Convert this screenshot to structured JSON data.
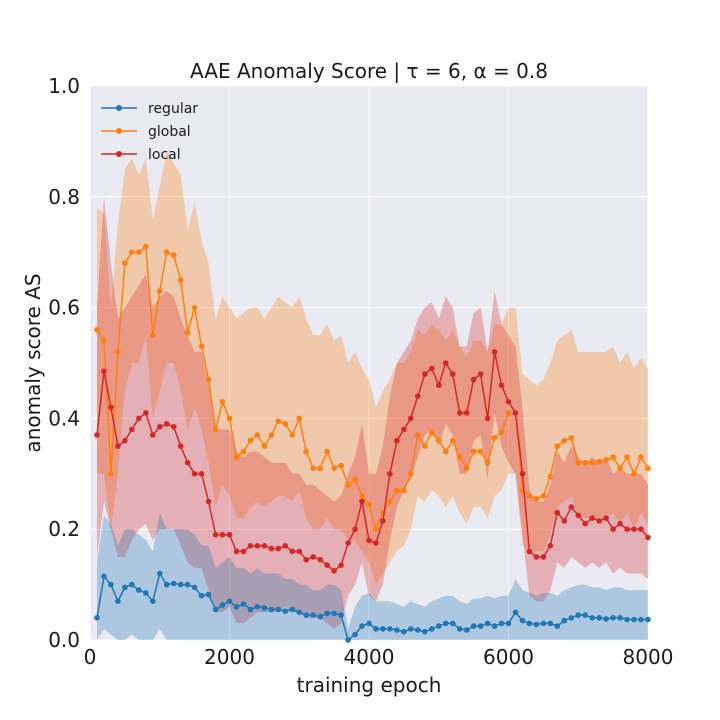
{
  "chart_data": {
    "type": "line",
    "title": "AAE Anomaly Score | τ = 6, α = 0.8",
    "xlabel": "training epoch",
    "ylabel": "anomaly score AS",
    "xlim": [
      0,
      8000
    ],
    "ylim": [
      0,
      1.0
    ],
    "xticks": [
      "0",
      "2000",
      "4000",
      "6000",
      "8000"
    ],
    "yticks": [
      "0.0",
      "0.2",
      "0.4",
      "0.6",
      "0.8",
      "1.0"
    ],
    "grid": true,
    "legend_position": "top-left",
    "x": [
      100,
      200,
      300,
      400,
      500,
      600,
      700,
      800,
      900,
      1000,
      1100,
      1200,
      1300,
      1400,
      1500,
      1600,
      1700,
      1800,
      1900,
      2000,
      2100,
      2200,
      2300,
      2400,
      2500,
      2600,
      2700,
      2800,
      2900,
      3000,
      3100,
      3200,
      3300,
      3400,
      3500,
      3600,
      3700,
      3800,
      3900,
      4000,
      4100,
      4200,
      4300,
      4400,
      4500,
      4600,
      4700,
      4800,
      4900,
      5000,
      5100,
      5200,
      5300,
      5400,
      5500,
      5600,
      5700,
      5800,
      5900,
      6000,
      6100,
      6200,
      6300,
      6400,
      6500,
      6600,
      6700,
      6800,
      6900,
      7000,
      7100,
      7200,
      7300,
      7400,
      7500,
      7600,
      7700,
      7800,
      7900,
      8000
    ],
    "series": [
      {
        "name": "regular",
        "color": "#1f77b4",
        "values": [
          0.04,
          0.115,
          0.1,
          0.07,
          0.095,
          0.1,
          0.09,
          0.085,
          0.07,
          0.12,
          0.1,
          0.102,
          0.1,
          0.1,
          0.095,
          0.08,
          0.082,
          0.055,
          0.063,
          0.07,
          0.06,
          0.065,
          0.055,
          0.06,
          0.058,
          0.055,
          0.055,
          0.052,
          0.055,
          0.05,
          0.045,
          0.045,
          0.042,
          0.048,
          0.048,
          0.045,
          0.0,
          0.01,
          0.025,
          0.03,
          0.02,
          0.02,
          0.02,
          0.018,
          0.015,
          0.02,
          0.018,
          0.015,
          0.02,
          0.025,
          0.03,
          0.03,
          0.02,
          0.018,
          0.025,
          0.025,
          0.03,
          0.025,
          0.03,
          0.03,
          0.05,
          0.035,
          0.03,
          0.028,
          0.03,
          0.03,
          0.025,
          0.035,
          0.04,
          0.045,
          0.045,
          0.04,
          0.04,
          0.038,
          0.04,
          0.04,
          0.037,
          0.037,
          0.037,
          0.037
        ],
        "lower": [
          0.0,
          0.02,
          0.01,
          0.0,
          0.0,
          0.01,
          0.0,
          0.0,
          0.0,
          0.02,
          0.0,
          0.0,
          0.0,
          0.0,
          0.0,
          0.0,
          0.0,
          0.0,
          0.0,
          0.0,
          0.0,
          0.0,
          0.0,
          0.0,
          0.0,
          0.0,
          0.0,
          0.0,
          0.0,
          0.0,
          0.0,
          0.0,
          0.0,
          0.0,
          0.0,
          0.0,
          0.0,
          0.0,
          0.0,
          0.0,
          0.0,
          0.0,
          0.0,
          0.0,
          0.0,
          0.0,
          0.0,
          0.0,
          0.0,
          0.0,
          0.0,
          0.0,
          0.0,
          0.0,
          0.0,
          0.0,
          0.0,
          0.0,
          0.0,
          0.0,
          0.0,
          0.0,
          0.0,
          0.0,
          0.0,
          0.0,
          0.0,
          0.0,
          0.0,
          0.0,
          0.0,
          0.0,
          0.0,
          0.0,
          0.0,
          0.0,
          0.0,
          0.0,
          0.0,
          0.0
        ],
        "upper": [
          0.14,
          0.225,
          0.21,
          0.17,
          0.2,
          0.2,
          0.19,
          0.18,
          0.16,
          0.23,
          0.2,
          0.2,
          0.2,
          0.2,
          0.19,
          0.17,
          0.17,
          0.13,
          0.14,
          0.15,
          0.13,
          0.13,
          0.12,
          0.13,
          0.12,
          0.12,
          0.12,
          0.11,
          0.11,
          0.1,
          0.1,
          0.09,
          0.09,
          0.1,
          0.1,
          0.09,
          0.02,
          0.06,
          0.08,
          0.085,
          0.07,
          0.07,
          0.07,
          0.065,
          0.06,
          0.07,
          0.065,
          0.06,
          0.07,
          0.075,
          0.08,
          0.08,
          0.07,
          0.065,
          0.075,
          0.075,
          0.08,
          0.075,
          0.08,
          0.08,
          0.11,
          0.09,
          0.085,
          0.08,
          0.085,
          0.085,
          0.08,
          0.09,
          0.095,
          0.1,
          0.1,
          0.095,
          0.095,
          0.09,
          0.095,
          0.095,
          0.09,
          0.09,
          0.09,
          0.09
        ]
      },
      {
        "name": "global",
        "color": "#ff7f0e",
        "values": [
          0.56,
          0.54,
          0.3,
          0.52,
          0.68,
          0.7,
          0.7,
          0.71,
          0.55,
          0.63,
          0.7,
          0.695,
          0.65,
          0.555,
          0.6,
          0.53,
          0.47,
          0.38,
          0.43,
          0.4,
          0.33,
          0.34,
          0.36,
          0.37,
          0.35,
          0.37,
          0.395,
          0.39,
          0.37,
          0.4,
          0.34,
          0.31,
          0.31,
          0.34,
          0.31,
          0.315,
          0.28,
          0.29,
          0.26,
          0.245,
          0.2,
          0.23,
          0.25,
          0.27,
          0.27,
          0.3,
          0.37,
          0.35,
          0.375,
          0.36,
          0.34,
          0.36,
          0.33,
          0.31,
          0.34,
          0.34,
          0.32,
          0.365,
          0.375,
          0.41,
          0.41,
          0.27,
          0.26,
          0.255,
          0.26,
          0.295,
          0.35,
          0.36,
          0.365,
          0.32,
          0.32,
          0.32,
          0.322,
          0.325,
          0.33,
          0.31,
          0.33,
          0.3,
          0.33,
          0.31
        ],
        "lower": [
          0.3,
          0.3,
          0.2,
          0.3,
          0.45,
          0.5,
          0.5,
          0.55,
          0.4,
          0.45,
          0.5,
          0.5,
          0.45,
          0.38,
          0.42,
          0.38,
          0.32,
          0.24,
          0.28,
          0.26,
          0.22,
          0.22,
          0.24,
          0.25,
          0.24,
          0.25,
          0.26,
          0.26,
          0.25,
          0.27,
          0.22,
          0.2,
          0.2,
          0.22,
          0.2,
          0.2,
          0.18,
          0.18,
          0.16,
          0.14,
          0.1,
          0.12,
          0.14,
          0.16,
          0.17,
          0.2,
          0.26,
          0.25,
          0.27,
          0.26,
          0.24,
          0.26,
          0.23,
          0.21,
          0.24,
          0.24,
          0.22,
          0.26,
          0.27,
          0.3,
          0.3,
          0.17,
          0.16,
          0.16,
          0.16,
          0.19,
          0.24,
          0.25,
          0.26,
          0.22,
          0.22,
          0.22,
          0.22,
          0.22,
          0.23,
          0.21,
          0.23,
          0.2,
          0.23,
          0.21
        ],
        "upper": [
          0.78,
          0.77,
          0.6,
          0.75,
          0.85,
          0.87,
          0.84,
          0.87,
          0.76,
          0.82,
          0.88,
          0.86,
          0.84,
          0.74,
          0.79,
          0.72,
          0.68,
          0.58,
          0.62,
          0.6,
          0.58,
          0.59,
          0.6,
          0.6,
          0.58,
          0.6,
          0.62,
          0.61,
          0.6,
          0.62,
          0.58,
          0.55,
          0.55,
          0.57,
          0.54,
          0.55,
          0.5,
          0.52,
          0.49,
          0.47,
          0.42,
          0.45,
          0.47,
          0.5,
          0.5,
          0.52,
          0.56,
          0.55,
          0.57,
          0.56,
          0.54,
          0.56,
          0.53,
          0.51,
          0.54,
          0.54,
          0.52,
          0.57,
          0.57,
          0.6,
          0.6,
          0.48,
          0.47,
          0.46,
          0.47,
          0.5,
          0.54,
          0.55,
          0.56,
          0.52,
          0.52,
          0.52,
          0.52,
          0.52,
          0.53,
          0.5,
          0.52,
          0.49,
          0.51,
          0.49
        ]
      },
      {
        "name": "local",
        "color": "#d62728",
        "values": [
          0.37,
          0.485,
          0.42,
          0.35,
          0.36,
          0.38,
          0.4,
          0.41,
          0.37,
          0.385,
          0.39,
          0.385,
          0.35,
          0.32,
          0.3,
          0.3,
          0.25,
          0.19,
          0.19,
          0.19,
          0.16,
          0.16,
          0.17,
          0.17,
          0.17,
          0.165,
          0.165,
          0.17,
          0.16,
          0.16,
          0.145,
          0.15,
          0.145,
          0.135,
          0.125,
          0.135,
          0.175,
          0.2,
          0.25,
          0.18,
          0.175,
          0.215,
          0.3,
          0.36,
          0.38,
          0.4,
          0.44,
          0.48,
          0.49,
          0.46,
          0.5,
          0.48,
          0.41,
          0.41,
          0.47,
          0.48,
          0.4,
          0.52,
          0.46,
          0.43,
          0.41,
          0.3,
          0.16,
          0.15,
          0.15,
          0.17,
          0.23,
          0.215,
          0.24,
          0.225,
          0.21,
          0.22,
          0.215,
          0.22,
          0.2,
          0.21,
          0.2,
          0.2,
          0.2,
          0.185
        ],
        "lower": [
          0.15,
          0.25,
          0.2,
          0.15,
          0.15,
          0.18,
          0.2,
          0.21,
          0.18,
          0.2,
          0.2,
          0.2,
          0.17,
          0.14,
          0.13,
          0.13,
          0.09,
          0.05,
          0.05,
          0.06,
          0.03,
          0.03,
          0.04,
          0.05,
          0.05,
          0.05,
          0.05,
          0.06,
          0.05,
          0.05,
          0.04,
          0.04,
          0.04,
          0.03,
          0.02,
          0.03,
          0.08,
          0.1,
          0.14,
          0.08,
          0.07,
          0.1,
          0.18,
          0.24,
          0.27,
          0.29,
          0.33,
          0.37,
          0.38,
          0.35,
          0.39,
          0.37,
          0.3,
          0.3,
          0.36,
          0.37,
          0.29,
          0.41,
          0.35,
          0.32,
          0.3,
          0.19,
          0.08,
          0.07,
          0.07,
          0.09,
          0.14,
          0.13,
          0.15,
          0.14,
          0.13,
          0.14,
          0.13,
          0.14,
          0.12,
          0.13,
          0.12,
          0.12,
          0.12,
          0.11
        ],
        "upper": [
          0.6,
          0.8,
          0.68,
          0.58,
          0.6,
          0.62,
          0.64,
          0.66,
          0.6,
          0.62,
          0.63,
          0.62,
          0.58,
          0.55,
          0.52,
          0.52,
          0.46,
          0.38,
          0.38,
          0.38,
          0.34,
          0.33,
          0.34,
          0.34,
          0.33,
          0.32,
          0.32,
          0.32,
          0.3,
          0.3,
          0.28,
          0.28,
          0.27,
          0.26,
          0.25,
          0.26,
          0.3,
          0.33,
          0.39,
          0.3,
          0.3,
          0.35,
          0.44,
          0.5,
          0.52,
          0.54,
          0.58,
          0.6,
          0.61,
          0.58,
          0.62,
          0.6,
          0.53,
          0.53,
          0.59,
          0.6,
          0.52,
          0.63,
          0.57,
          0.55,
          0.53,
          0.42,
          0.27,
          0.25,
          0.25,
          0.28,
          0.34,
          0.32,
          0.35,
          0.33,
          0.32,
          0.33,
          0.32,
          0.33,
          0.3,
          0.31,
          0.3,
          0.3,
          0.3,
          0.28
        ]
      }
    ]
  },
  "colors": {
    "plot_background": "#eaeaf2",
    "grid": "#ffffff",
    "regular": "#1f77b4",
    "global": "#ff7f0e",
    "local": "#d62728"
  }
}
